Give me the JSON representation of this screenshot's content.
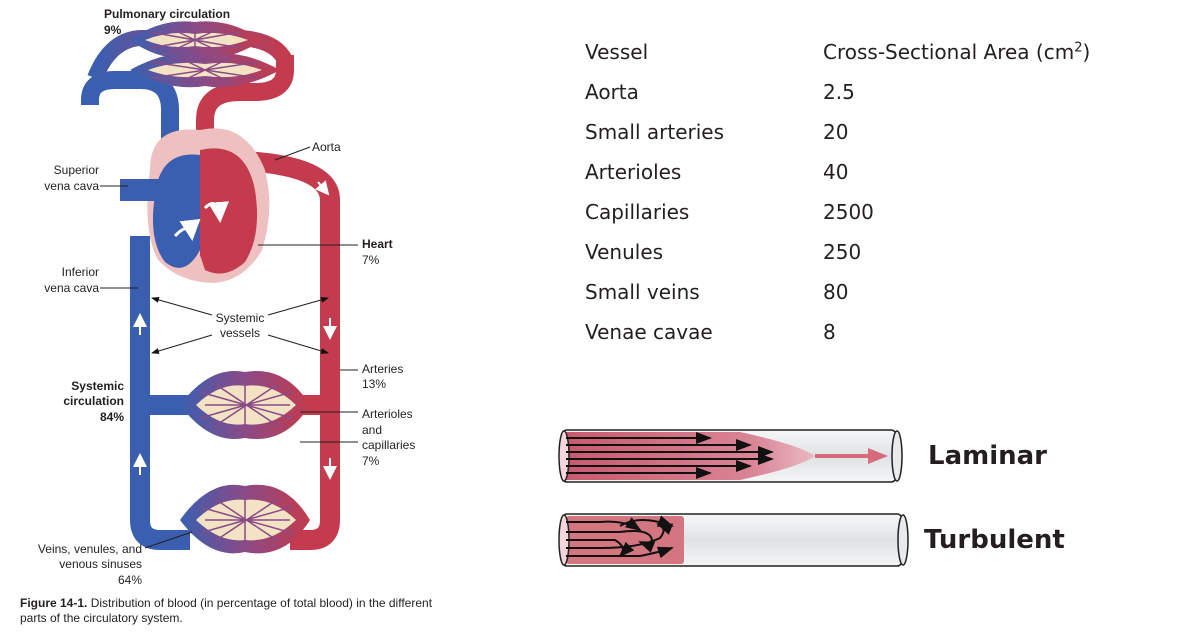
{
  "figure": {
    "labels": {
      "pulmonary_title": "Pulmonary circulation",
      "pulmonary_pct": "9%",
      "aorta": "Aorta",
      "svc_line1": "Superior",
      "svc_line2": "vena cava",
      "ivc_line1": "Inferior",
      "ivc_line2": "vena cava",
      "heart_title": "Heart",
      "heart_pct": "7%",
      "systemic_vessels_line1": "Systemic",
      "systemic_vessels_line2": "vessels",
      "arteries_title": "Arteries",
      "arteries_pct": "13%",
      "systemic_circ_line1": "Systemic",
      "systemic_circ_line2": "circulation",
      "systemic_circ_pct": "84%",
      "arterioles_line1": "Arterioles",
      "arterioles_line2": "and",
      "arterioles_line3": "capillaries",
      "arterioles_pct": "7%",
      "veins_line1": "Veins, venules, and",
      "veins_line2": "venous sinuses",
      "veins_pct": "64%"
    },
    "caption_label": "Figure 14-1.",
    "caption_text": "Distribution of blood (in percentage of total blood) in the different parts of the circulatory system."
  },
  "table": {
    "headers": [
      "Vessel",
      "Cross-Sectional Area (cm",
      "2",
      ")"
    ],
    "rows": [
      {
        "vessel": "Aorta",
        "area": "2.5"
      },
      {
        "vessel": "Small arteries",
        "area": "20"
      },
      {
        "vessel": "Arterioles",
        "area": "40"
      },
      {
        "vessel": "Capillaries",
        "area": "2500"
      },
      {
        "vessel": "Venules",
        "area": "250"
      },
      {
        "vessel": "Small veins",
        "area": "80"
      },
      {
        "vessel": "Venae cavae",
        "area": "8"
      }
    ]
  },
  "flow": {
    "laminar": "Laminar",
    "turbulent": "Turbulent"
  },
  "colors": {
    "vein_blue": "#3a5fb0",
    "artery_red": "#c33b4d",
    "heart_pink": "#efc0c0",
    "flow_pink": "#d86a7d",
    "tube_gray": "#e4e6e8"
  }
}
